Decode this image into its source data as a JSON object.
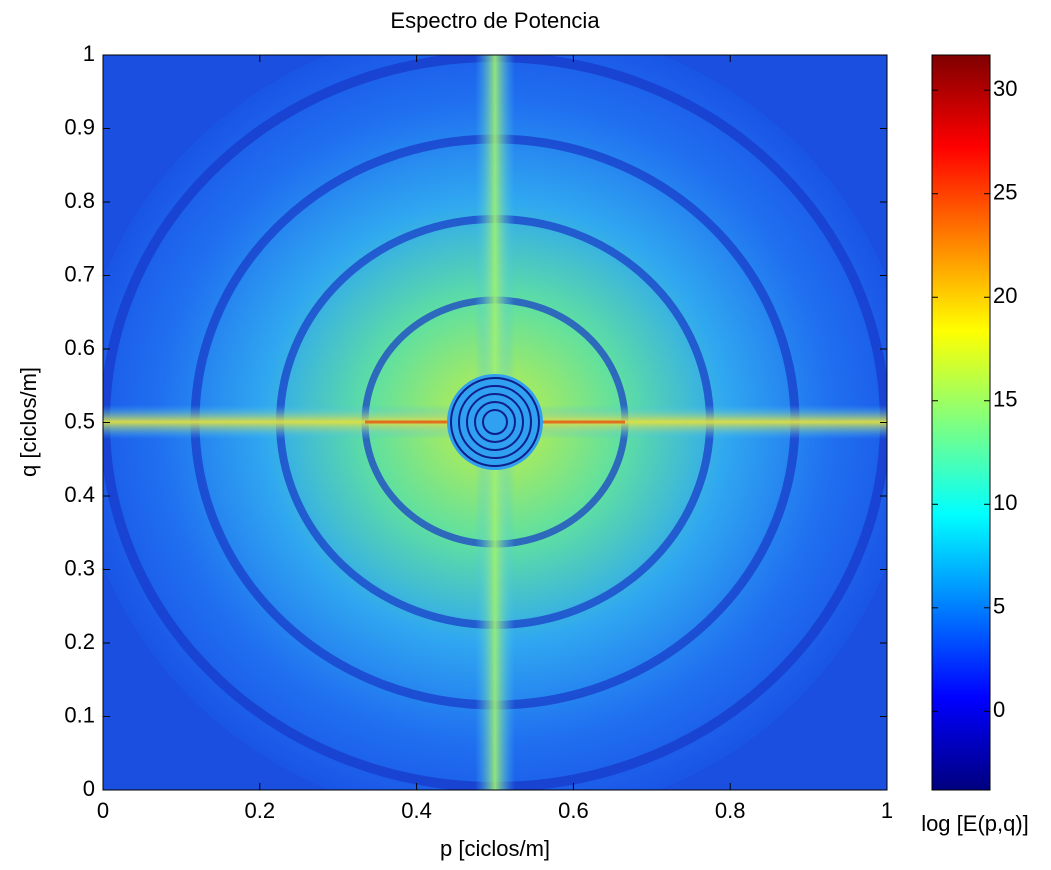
{
  "chart_data": {
    "type": "heatmap",
    "title": "Espectro de Potencia",
    "x_label": "p [ciclos/m]",
    "y_label": "q [ciclos/m]",
    "xlim": [
      0,
      1
    ],
    "ylim": [
      0,
      1
    ],
    "xticks": [
      0,
      0.2,
      0.4,
      0.6,
      0.8,
      1
    ],
    "yticks": [
      0,
      0.1,
      0.2,
      0.3,
      0.4,
      0.5,
      0.6,
      0.7,
      0.8,
      0.9,
      1
    ],
    "colormap": "jet",
    "colorbar": {
      "label": "log [E(p,q)]",
      "clim": [
        -3.8,
        31.7
      ],
      "ticks": [
        0,
        5,
        10,
        15,
        20,
        25,
        30
      ]
    }
  }
}
